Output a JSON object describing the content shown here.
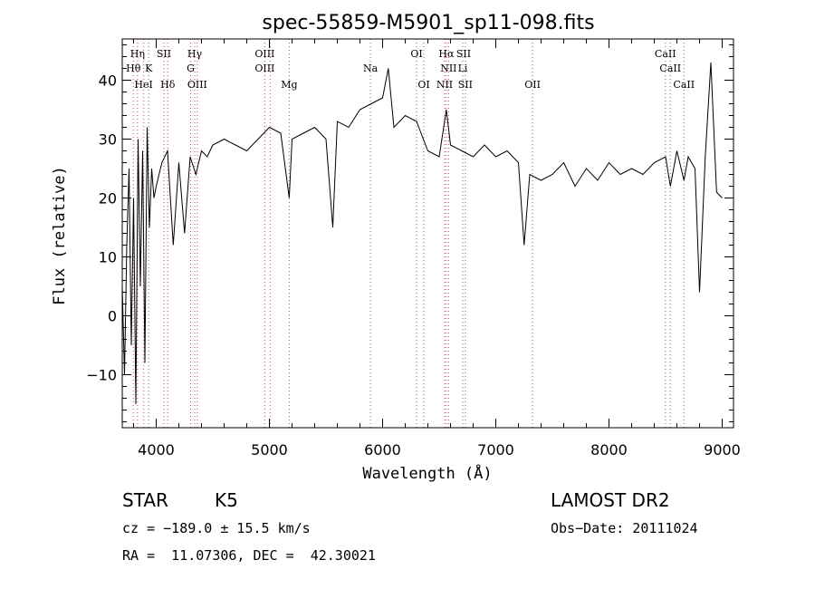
{
  "chart_data": {
    "type": "line",
    "title": "spec-55859-M5901_sp11-098.fits",
    "xlabel": "Wavelength (Å)",
    "ylabel": "Flux (relative)",
    "xlim": [
      3700,
      9100
    ],
    "ylim": [
      -19,
      47
    ],
    "x_ticks": [
      4000,
      5000,
      6000,
      7000,
      8000,
      9000
    ],
    "y_ticks": [
      -10,
      0,
      10,
      20,
      30,
      40
    ],
    "grid": false,
    "series": [
      {
        "x": [
          3700,
          3720,
          3740,
          3760,
          3780,
          3800,
          3820,
          3840,
          3860,
          3880,
          3900,
          3920,
          3940,
          3960,
          3980,
          4000,
          4050,
          4100,
          4150,
          4200,
          4250,
          4300,
          4350,
          4400,
          4450,
          4500,
          4600,
          4700,
          4800,
          4900,
          5000,
          5100,
          5175,
          5200,
          5300,
          5400,
          5500,
          5560,
          5600,
          5700,
          5800,
          5900,
          6000,
          6050,
          6100,
          6200,
          6300,
          6400,
          6500,
          6563,
          6600,
          6700,
          6800,
          6900,
          7000,
          7100,
          7200,
          7250,
          7300,
          7400,
          7500,
          7600,
          7700,
          7800,
          7900,
          8000,
          8100,
          8200,
          8300,
          8400,
          8500,
          8542,
          8600,
          8662,
          8700,
          8760,
          8800,
          8850,
          8900,
          8950,
          9000
        ],
        "values": [
          5,
          -10,
          12,
          25,
          -5,
          20,
          -15,
          30,
          5,
          28,
          -8,
          32,
          15,
          25,
          20,
          22,
          26,
          28,
          12,
          26,
          14,
          27,
          24,
          28,
          27,
          29,
          30,
          29,
          28,
          30,
          32,
          31,
          20,
          30,
          31,
          32,
          30,
          15,
          33,
          32,
          35,
          36,
          37,
          42,
          32,
          34,
          33,
          28,
          27,
          35,
          29,
          28,
          27,
          29,
          27,
          28,
          26,
          12,
          24,
          23,
          24,
          26,
          22,
          25,
          23,
          26,
          24,
          25,
          24,
          26,
          27,
          22,
          28,
          23,
          27,
          25,
          4,
          27,
          43,
          21,
          20
        ]
      }
    ],
    "line_markers": {
      "top": [
        {
          "label": "Hη",
          "x": 3835
        },
        {
          "label": "SII",
          "x": 4068
        },
        {
          "label": "Hγ",
          "x": 4340
        },
        {
          "label": "OIII",
          "x": 4959
        },
        {
          "label": "OI",
          "x": 6300
        },
        {
          "label": "Hα",
          "x": 6563
        },
        {
          "label": "SII",
          "x": 6716
        },
        {
          "label": "CaII",
          "x": 8498
        }
      ],
      "middle": [
        {
          "label": "Hθ",
          "x": 3798
        },
        {
          "label": "K",
          "x": 3934
        },
        {
          "label": "G",
          "x": 4304
        },
        {
          "label": "OIII",
          "x": 4959
        },
        {
          "label": "Na",
          "x": 5893
        },
        {
          "label": "NII",
          "x": 6583
        },
        {
          "label": "Li",
          "x": 6708
        },
        {
          "label": "CaII",
          "x": 8542
        }
      ],
      "bottom": [
        {
          "label": "HeI",
          "x": 3889
        },
        {
          "label": "Hδ",
          "x": 4102
        },
        {
          "label": "OIII",
          "x": 4363
        },
        {
          "label": "Mg",
          "x": 5175
        },
        {
          "label": "OI",
          "x": 6364
        },
        {
          "label": "NII",
          "x": 6548
        },
        {
          "label": "SII",
          "x": 6731
        },
        {
          "label": "OII",
          "x": 7325
        },
        {
          "label": "CaII",
          "x": 8662
        }
      ]
    },
    "dotted_lines_x": [
      3798,
      3835,
      3889,
      3934,
      4068,
      4102,
      4304,
      4340,
      4363,
      4959,
      5007,
      5175,
      5893,
      6300,
      6364,
      6548,
      6563,
      6583,
      6708,
      6731,
      7325,
      8498,
      8542,
      8662
    ],
    "colors": {
      "spectrum": "#000000",
      "marker_lines": "#c0504d"
    }
  },
  "info": {
    "object_class": "STAR",
    "subclass": "K5",
    "survey": "LAMOST DR2",
    "redshift": "cz = −189.0 ± 15.5 km/s",
    "obs_date": "Obs−Date: 20111024",
    "coords": "RA =  11.07306, DEC =  42.30021"
  }
}
